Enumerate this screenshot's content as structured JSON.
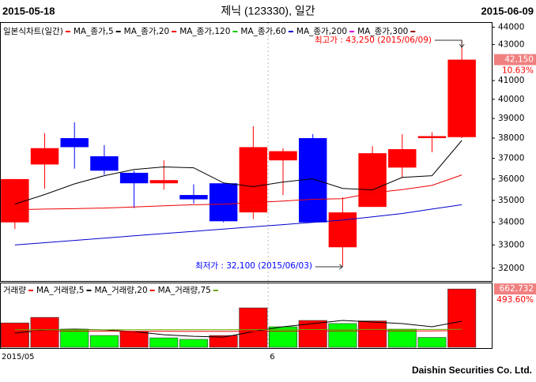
{
  "header": {
    "date_start": "2015-05-18",
    "title": "제닉 (123330), 일간",
    "date_end": "2015-06-09"
  },
  "footer": "Daishin Securities Co. Ltd.",
  "chart_data": [
    {
      "type": "candlestick",
      "legend_label": "일본식차트(일간)",
      "up_color": "#ff0000",
      "down_color": "#0000ff",
      "open": [
        34000,
        36700,
        38000,
        37100,
        36300,
        35800,
        35250,
        35800,
        34450,
        36900,
        38000,
        32900,
        34700,
        36550,
        38000,
        38050
      ],
      "high": [
        36000,
        38250,
        38800,
        37650,
        36400,
        36900,
        35750,
        35800,
        38600,
        37500,
        38200,
        35150,
        37600,
        38200,
        38300,
        43250
      ],
      "low": [
        33700,
        35550,
        36500,
        36200,
        34650,
        35500,
        34850,
        34000,
        34150,
        35250,
        34000,
        32100,
        34700,
        36050,
        37300,
        38000
      ],
      "close": [
        36000,
        37500,
        37550,
        36400,
        35800,
        35950,
        35050,
        34050,
        37550,
        37350,
        34000,
        34450,
        37250,
        37450,
        38100,
        42150
      ],
      "ylim": [
        31500,
        44200
      ],
      "log_scale": true,
      "yticks": [
        32000,
        33000,
        34000,
        35000,
        36000,
        37000,
        38000,
        39000,
        40000,
        41000,
        43000,
        44000
      ],
      "series": [
        {
          "name": "MA_종가,5",
          "color": "#000000",
          "values": [
            34830,
            35270,
            35770,
            36160,
            36460,
            36580,
            36540,
            35820,
            35640,
            35860,
            36010,
            35560,
            35490,
            36080,
            36160,
            37880
          ]
        },
        {
          "name": "MA_종가,20",
          "color": "#ee0000",
          "values": [
            34570,
            34600,
            34620,
            34650,
            34700,
            34750,
            34800,
            34830,
            34900,
            34970,
            35050,
            35080,
            35350,
            35500,
            35700,
            36200
          ]
        },
        {
          "name": "MA_종가,120",
          "color": "#00cc00"
        },
        {
          "name": "MA_종가,60",
          "color": "#0000cc",
          "values": [
            33000,
            33100,
            33200,
            33300,
            33400,
            33500,
            33600,
            33700,
            33800,
            33900,
            34000,
            34100,
            34250,
            34400,
            34600,
            34800
          ]
        },
        {
          "name": "MA_종가,200",
          "color": "#dd00dd"
        },
        {
          "name": "MA_종가,300",
          "color": "#990000"
        }
      ],
      "last_label": "42,150",
      "change_label": "10.63%",
      "annotations": [
        {
          "text": "최고가 : 43,250 (2015/06/09)",
          "color": "#ff0000"
        },
        {
          "text": "최저가 : 32,100 (2015/06/03)",
          "color": "#0000ff"
        }
      ]
    },
    {
      "type": "bar",
      "legend_label": "거래량",
      "color": "#ff0000",
      "categories": [
        "2015/05",
        null,
        null,
        null,
        null,
        null,
        null,
        null,
        null,
        "6",
        null,
        null,
        null,
        null,
        null,
        null
      ],
      "values": [
        277000,
        340000,
        206000,
        134000,
        179000,
        107000,
        90000,
        134000,
        448000,
        233000,
        305000,
        270000,
        300000,
        206000,
        112000,
        662732
      ],
      "colors": [
        "#ff0000",
        "#ff0000",
        "#00ff00",
        "#00ff00",
        "#ff0000",
        "#00ff00",
        "#00ff00",
        "#ff0000",
        "#ff0000",
        "#00ff00",
        "#ff0000",
        "#00ff00",
        "#ff0000",
        "#00ff00",
        "#00ff00",
        "#ff0000"
      ],
      "ylim": [
        0,
        700000
      ],
      "series": [
        {
          "name": "MA_거래량,5",
          "color": "#000000",
          "values": [
            161000,
            197000,
            206000,
            197000,
            179000,
            143000,
            125000,
            116000,
            179000,
            233000,
            269000,
            305000,
            287000,
            269000,
            233000,
            296000
          ]
        },
        {
          "name": "MA_거래량,20",
          "color": "#ee0000",
          "values": [
            185000,
            185000,
            184000,
            183000,
            182000,
            181000,
            180000,
            180000,
            182000,
            183000,
            184000,
            186000,
            187000,
            187000,
            186000,
            190000
          ]
        },
        {
          "name": "MA_거래량,75",
          "color": "#66aa00",
          "values": [
            200000,
            200000,
            200000,
            200000,
            200000,
            200000,
            200000,
            200000,
            201000,
            201000,
            202000,
            202000,
            203000,
            203000,
            203000,
            205000
          ]
        }
      ],
      "last_label": "662,732",
      "change_label": "493.60%"
    }
  ]
}
